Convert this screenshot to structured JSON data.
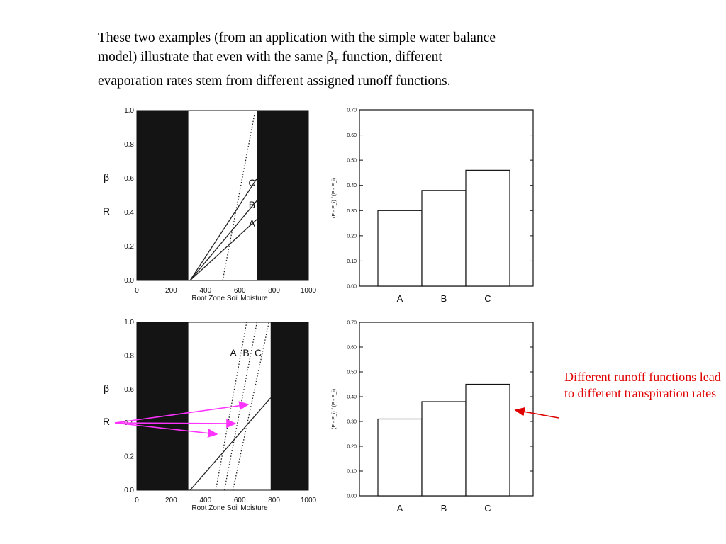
{
  "slide": {
    "intro_1": "These two examples (from an application with the simple water balance",
    "intro_2a": "model) illustrate that even with the same ",
    "beta": "β",
    "sub_T": "T",
    "intro_2b": " function, different",
    "intro_3": "evaporation rates stem from different assigned runoff functions.",
    "note": "Different runoff functions lead to different transpiration rates",
    "note_color": "#e00000",
    "arrow_color": "#ff33ff"
  },
  "chart_data": [
    {
      "type": "line",
      "xlabel": "Root Zone Soil Moisture",
      "ylabel_symbols": [
        "β",
        "R"
      ],
      "xlim": [
        0,
        1000
      ],
      "ylim": [
        0,
        1
      ],
      "x_ticks": [
        "0",
        "200",
        "400",
        "600",
        "800",
        "1000"
      ],
      "y_ticks": [
        "0.0",
        "0.2",
        "0.4",
        "0.6",
        "0.8",
        "1.0"
      ],
      "shaded_ranges": [
        [
          0,
          300
        ],
        [
          700,
          1000
        ]
      ],
      "beta_line": {
        "style": "dotted",
        "points": [
          [
            500,
            0
          ],
          [
            690,
            1.0
          ]
        ]
      },
      "series": [
        {
          "name": "A",
          "points": [
            [
              310,
              0
            ],
            [
              700,
              0.36
            ]
          ]
        },
        {
          "name": "B",
          "points": [
            [
              310,
              0
            ],
            [
              700,
              0.47
            ]
          ]
        },
        {
          "name": "C",
          "points": [
            [
              310,
              0
            ],
            [
              700,
              0.6
            ]
          ]
        }
      ]
    },
    {
      "type": "bar",
      "ylabel": "(E - E_i) / (P - E_i)",
      "ylim": [
        0,
        0.7
      ],
      "y_ticks": [
        "0.00",
        "0.10",
        "0.20",
        "0.30",
        "0.40",
        "0.50",
        "0.60",
        "0.70"
      ],
      "categories": [
        "A",
        "B",
        "C"
      ],
      "values": [
        0.3,
        0.38,
        0.46
      ]
    },
    {
      "type": "line",
      "xlabel": "Root Zone Soil Moisture",
      "ylabel_symbols": [
        "β",
        "R"
      ],
      "xlim": [
        0,
        1000
      ],
      "ylim": [
        0,
        1
      ],
      "x_ticks": [
        "0",
        "200",
        "400",
        "600",
        "800",
        "1000"
      ],
      "y_ticks": [
        "0.0",
        "0.2",
        "0.4",
        "0.6",
        "0.8",
        "1.0"
      ],
      "shaded_ranges": [
        [
          0,
          300
        ],
        [
          780,
          1000
        ]
      ],
      "beta_line": {
        "style": "solid",
        "points": [
          [
            310,
            0
          ],
          [
            780,
            0.55
          ]
        ]
      },
      "series": [
        {
          "name": "A",
          "style": "dotted",
          "points": [
            [
              460,
              0
            ],
            [
              640,
              1.0
            ]
          ]
        },
        {
          "name": "B",
          "style": "dotted",
          "points": [
            [
              510,
              0
            ],
            [
              700,
              1.0
            ]
          ]
        },
        {
          "name": "C",
          "style": "dotted",
          "points": [
            [
              560,
              0
            ],
            [
              770,
              1.0
            ]
          ]
        }
      ]
    },
    {
      "type": "bar",
      "ylabel": "(E - E_i) / (P - E_i)",
      "ylim": [
        0,
        0.7
      ],
      "y_ticks": [
        "0.00",
        "0.10",
        "0.20",
        "0.30",
        "0.40",
        "0.50",
        "0.60",
        "0.70"
      ],
      "categories": [
        "A",
        "B",
        "C"
      ],
      "values": [
        0.31,
        0.38,
        0.45
      ]
    }
  ]
}
